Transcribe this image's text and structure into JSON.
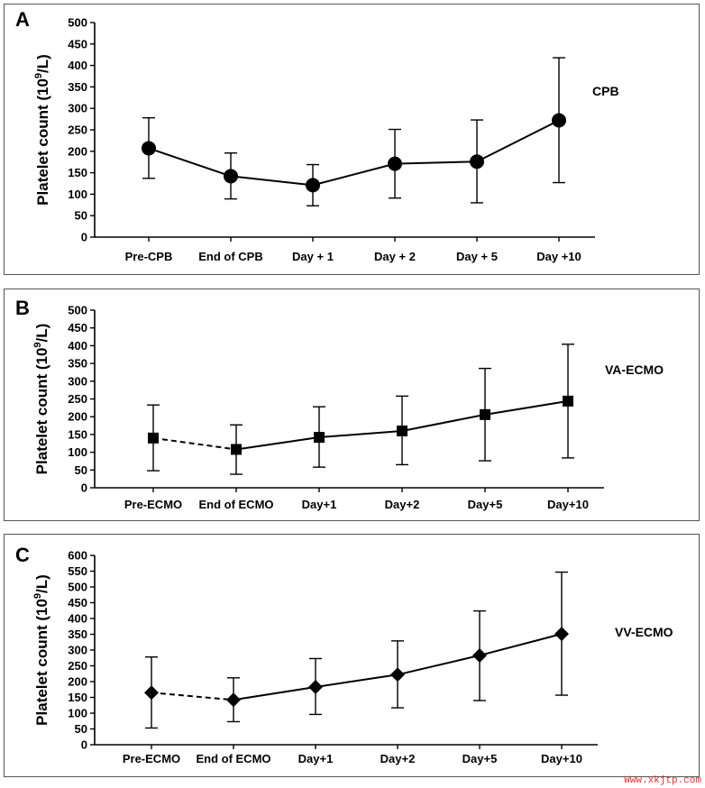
{
  "chart_data": [
    {
      "type": "line",
      "panel": "A",
      "series_label": "CPB",
      "ylabel": "Platelet count (10^9/L)",
      "ylabel_parts": {
        "base": "Platelet count (10",
        "sup": "9",
        "tail": "/L)"
      },
      "ylim": [
        0,
        500
      ],
      "yticks": [
        0,
        50,
        100,
        150,
        200,
        250,
        300,
        350,
        400,
        450,
        500
      ],
      "categories": [
        "Pre-CPB",
        "End of CPB",
        "Day + 1",
        "Day + 2",
        "Day + 5",
        "Day +10"
      ],
      "marker": "circle",
      "dashed_first_segment": false,
      "values": [
        207,
        142,
        121,
        171,
        176,
        272
      ],
      "err_low": [
        137,
        89,
        73,
        91,
        80,
        127
      ],
      "err_high": [
        278,
        196,
        169,
        251,
        273,
        418
      ]
    },
    {
      "type": "line",
      "panel": "B",
      "series_label": "VA-ECMO",
      "ylabel": "Platelet count (10^9/L)",
      "ylabel_parts": {
        "base": "Platelet count (10",
        "sup": "9",
        "tail": "/L)"
      },
      "ylim": [
        0,
        500
      ],
      "yticks": [
        0,
        50,
        100,
        150,
        200,
        250,
        300,
        350,
        400,
        450,
        500
      ],
      "categories": [
        "Pre-ECMO",
        "End of ECMO",
        "Day+1",
        "Day+2",
        "Day+5",
        "Day+10"
      ],
      "marker": "square",
      "dashed_first_segment": true,
      "values": [
        140,
        108,
        142,
        160,
        206,
        244
      ],
      "err_low": [
        48,
        38,
        58,
        65,
        76,
        84
      ],
      "err_high": [
        233,
        177,
        228,
        258,
        336,
        404
      ]
    },
    {
      "type": "line",
      "panel": "C",
      "series_label": "VV-ECMO",
      "ylabel": "Platelet count (10^9/L)",
      "ylabel_parts": {
        "base": "Platelet count (10",
        "sup": "9",
        "tail": "/L)"
      },
      "ylim": [
        0,
        600
      ],
      "yticks": [
        0,
        50,
        100,
        150,
        200,
        250,
        300,
        350,
        400,
        450,
        500,
        550,
        600
      ],
      "categories": [
        "Pre-ECMO",
        "End of ECMO",
        "Day+1",
        "Day+2",
        "Day+5",
        "Day+10"
      ],
      "marker": "diamond",
      "dashed_first_segment": true,
      "values": [
        165,
        142,
        183,
        222,
        283,
        351
      ],
      "err_low": [
        53,
        73,
        96,
        117,
        140,
        157
      ],
      "err_high": [
        278,
        212,
        273,
        329,
        424,
        547
      ]
    }
  ],
  "watermark": "Www.xkjtp.com"
}
